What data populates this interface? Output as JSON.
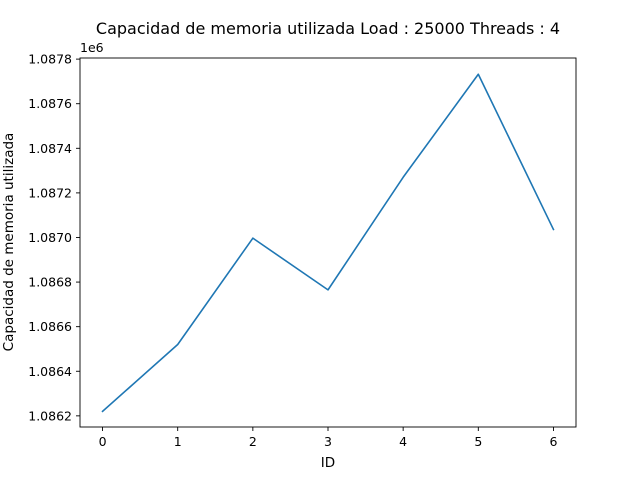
{
  "chart_data": {
    "type": "line",
    "title": "Capacidad de memoria utilizada Load : 25000 Threads : 4",
    "xlabel": "ID",
    "ylabel": "Capacidad de memoria utilizada",
    "y_offset_label": "1e6",
    "x": [
      0,
      1,
      2,
      3,
      4,
      5,
      6
    ],
    "series": [
      {
        "values": [
          1086220,
          1086520,
          1086997,
          1086765,
          1087270,
          1087732,
          1087036
        ],
        "color": "#1f77b4"
      }
    ],
    "xlim": [
      -0.3,
      6.3
    ],
    "ylim": [
      1086150,
      1087805
    ],
    "x_ticks": [
      0,
      1,
      2,
      3,
      4,
      5,
      6
    ],
    "x_tick_labels": [
      "0",
      "1",
      "2",
      "3",
      "4",
      "5",
      "6"
    ],
    "y_ticks": [
      1086200,
      1086400,
      1086600,
      1086800,
      1087000,
      1087200,
      1087400,
      1087600,
      1087800
    ],
    "y_tick_labels": [
      "1.0862",
      "1.0864",
      "1.0866",
      "1.0868",
      "1.0870",
      "1.0872",
      "1.0874",
      "1.0876",
      "1.0878"
    ],
    "grid": false
  }
}
